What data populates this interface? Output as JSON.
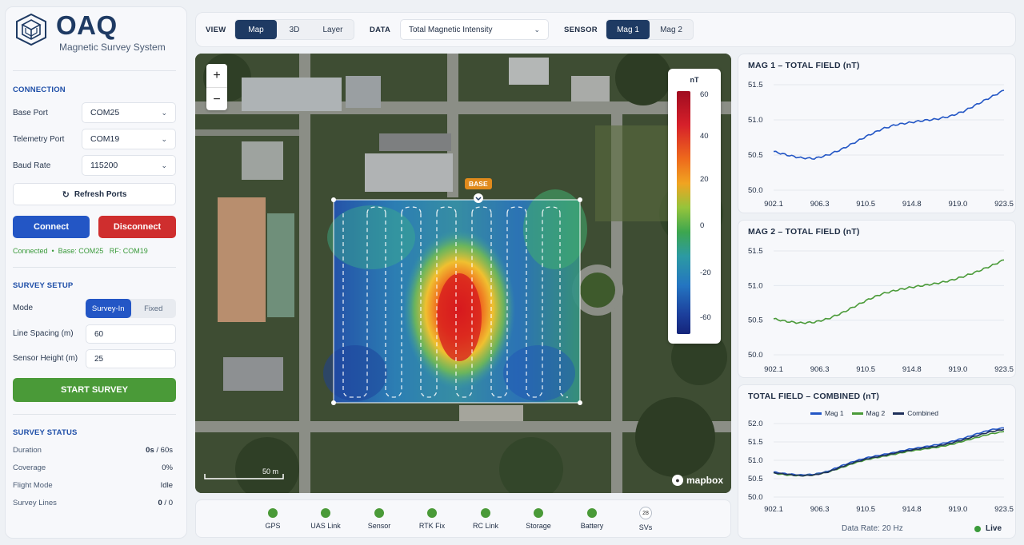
{
  "app": {
    "title": "OAQ",
    "subtitle": "Magnetic Survey System"
  },
  "connection": {
    "section_title": "CONNECTION",
    "base_port_label": "Base Port",
    "base_port_value": "COM25",
    "telemetry_port_label": "Telemetry Port",
    "telemetry_port_value": "COM19",
    "baud_rate_label": "Baud Rate",
    "baud_rate_value": "115200",
    "refresh_label": "Refresh Ports",
    "connect_label": "Connect",
    "disconnect_label": "Disconnect",
    "status_text": "Connected  •  Base: COM25   RF: COM19"
  },
  "survey_setup": {
    "section_title": "SURVEY SETUP",
    "mode_label": "Mode",
    "mode_options": [
      "Survey-In",
      "Fixed"
    ],
    "line_spacing_label": "Line Spacing (m)",
    "line_spacing_value": "60",
    "sensor_height_label": "Sensor Height (m)",
    "sensor_height_value": "25",
    "start_label": "START SURVEY"
  },
  "survey_status": {
    "section_title": "SURVEY STATUS",
    "duration_label": "Duration",
    "duration_value": "0s",
    "duration_total": " / 60s",
    "coverage_label": "Coverage",
    "coverage_value": "0%",
    "flight_mode_label": "Flight Mode",
    "flight_mode_value": "Idle",
    "survey_lines_label": "Survey Lines",
    "survey_lines_value": "0",
    "survey_lines_total": " / 0"
  },
  "toolbar": {
    "view_label": "VIEW",
    "view_options": [
      "Map",
      "3D",
      "Layer"
    ],
    "data_label": "DATA",
    "data_value": "Total Magnetic Intensity",
    "sensor_label": "SENSOR",
    "sensor_options": [
      "Mag 1",
      "Mag 2"
    ]
  },
  "map": {
    "zoom_in": "+",
    "zoom_out": "−",
    "legend_unit": "nT",
    "legend_ticks": [
      "60",
      "40",
      "20",
      "0",
      "-20",
      "-60"
    ],
    "base_label": "BASE",
    "scale_label": "50 m",
    "attribution": "mapbox"
  },
  "status_bar": {
    "items": [
      "GPS",
      "UAS Link",
      "Sensor",
      "RTK Fix",
      "RC Link",
      "Storage",
      "Battery",
      "SVs"
    ],
    "svs_count": "28"
  },
  "footer": {
    "data_rate": "Data Rate: 20 Hz",
    "live": "Live"
  },
  "colors": {
    "mag1": "#2356c5",
    "mag2": "#4a9a38",
    "combined": "#1e2f5a"
  },
  "chart_data": [
    {
      "type": "line",
      "title": "MAG 1 – TOTAL FIELD (nT)",
      "x_ticks": [
        "902.1",
        "906.3",
        "910.5",
        "914.8",
        "919.0",
        "923.5"
      ],
      "ylim": [
        50.0,
        51.5
      ],
      "y_ticks": [
        "51.5",
        "51.0",
        "50.5",
        "50.0"
      ],
      "series": [
        {
          "values": [
            50.55,
            50.5,
            50.46,
            50.45,
            50.5,
            50.58,
            50.68,
            50.78,
            50.87,
            50.93,
            50.96,
            50.99,
            51.01,
            51.05,
            51.12,
            51.22,
            51.32,
            51.42
          ]
        }
      ]
    },
    {
      "type": "line",
      "title": "MAG 2 – TOTAL FIELD (nT)",
      "x_ticks": [
        "902.1",
        "906.3",
        "910.5",
        "914.8",
        "919.0",
        "923.5"
      ],
      "ylim": [
        50.0,
        51.5
      ],
      "y_ticks": [
        "51.5",
        "51.0",
        "50.5",
        "50.0"
      ],
      "series": [
        {
          "values": [
            50.52,
            50.48,
            50.46,
            50.47,
            50.52,
            50.6,
            50.7,
            50.8,
            50.88,
            50.93,
            50.97,
            51.0,
            51.03,
            51.07,
            51.13,
            51.2,
            51.28,
            51.37
          ]
        }
      ]
    },
    {
      "type": "line",
      "title": "TOTAL FIELD – COMBINED (nT)",
      "x_ticks": [
        "902.1",
        "906.3",
        "910.5",
        "914.8",
        "919.0",
        "923.5"
      ],
      "ylim": [
        50.0,
        52.0
      ],
      "y_ticks": [
        "52.0",
        "51.5",
        "51.0",
        "50.5",
        "50.0"
      ],
      "series": [
        {
          "name": "Mag 1",
          "values": [
            50.68,
            50.63,
            50.6,
            50.62,
            50.7,
            50.85,
            50.98,
            51.08,
            51.15,
            51.22,
            51.3,
            51.36,
            51.42,
            51.5,
            51.6,
            51.72,
            51.83,
            51.88
          ]
        },
        {
          "name": "Mag 2",
          "values": [
            50.65,
            50.6,
            50.58,
            50.6,
            50.68,
            50.8,
            50.93,
            51.03,
            51.1,
            51.17,
            51.25,
            51.3,
            51.35,
            51.42,
            51.52,
            51.62,
            51.72,
            51.78
          ]
        },
        {
          "name": "Combined",
          "values": [
            50.66,
            50.62,
            50.58,
            50.6,
            50.68,
            50.82,
            50.95,
            51.05,
            51.12,
            51.2,
            51.27,
            51.33,
            51.38,
            51.46,
            51.56,
            51.67,
            51.78,
            51.84
          ]
        }
      ]
    }
  ]
}
